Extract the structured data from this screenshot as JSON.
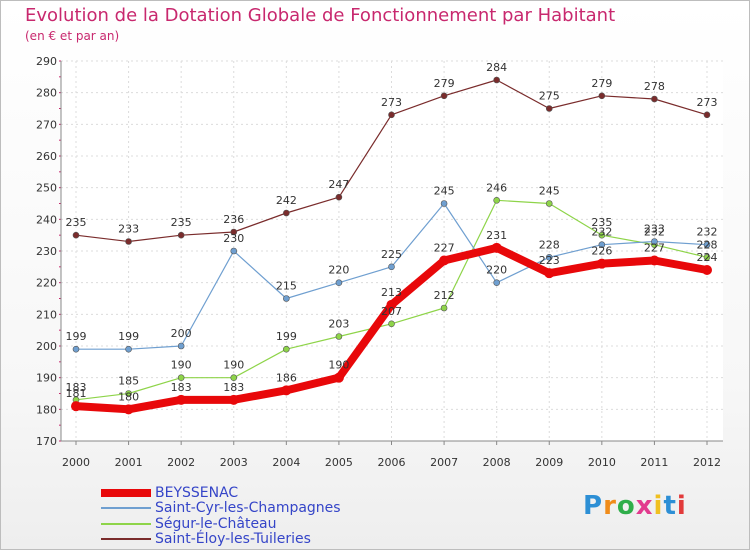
{
  "chart_data": {
    "type": "line",
    "title": "Evolution de la Dotation Globale de Fonctionnement par Habitant",
    "subtitle": "(en € et par an)",
    "xlabel": "",
    "ylabel": "",
    "x": [
      2000,
      2001,
      2002,
      2003,
      2004,
      2005,
      2006,
      2007,
      2008,
      2009,
      2010,
      2011,
      2012
    ],
    "ylim": [
      170,
      290
    ],
    "yticks": [
      170,
      180,
      190,
      200,
      210,
      220,
      230,
      240,
      250,
      260,
      270,
      280,
      290
    ],
    "grid": true,
    "legend_position": "bottom-left",
    "series": [
      {
        "name": "BEYSSENAC",
        "color": "#e8080a",
        "width": "thick",
        "values": [
          181,
          180,
          183,
          183,
          186,
          190,
          213,
          227,
          231,
          223,
          226,
          227,
          224
        ]
      },
      {
        "name": "Saint-Cyr-les-Champagnes",
        "color": "#6f9fd0",
        "width": "thin",
        "values": [
          199,
          199,
          200,
          230,
          215,
          220,
          225,
          245,
          220,
          228,
          232,
          233,
          232
        ]
      },
      {
        "name": "Ségur-le-Château",
        "color": "#8ed449",
        "width": "thin",
        "values": [
          183,
          185,
          190,
          190,
          199,
          203,
          207,
          212,
          246,
          245,
          235,
          232,
          228
        ]
      },
      {
        "name": "Saint-Éloy-les-Tuileries",
        "color": "#7a2c2c",
        "width": "thin",
        "values": [
          235,
          233,
          235,
          236,
          242,
          247,
          273,
          279,
          284,
          275,
          279,
          278,
          273
        ]
      }
    ]
  },
  "brand": {
    "text": "Proxiti",
    "colors": [
      "#2d8fd5",
      "#f08c1a",
      "#2fae4a",
      "#e23a8e",
      "#f0c020",
      "#2d8fd5",
      "#e23a3a"
    ]
  }
}
